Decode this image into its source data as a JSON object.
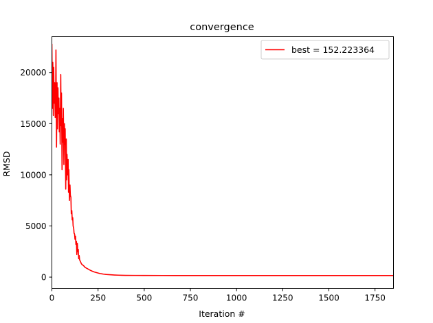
{
  "chart_data": {
    "type": "line",
    "title": "convergence",
    "xlabel": "Iteration #",
    "ylabel": "RMSD",
    "xlim": [
      0,
      1850
    ],
    "ylim": [
      -1100,
      23500
    ],
    "xticks": [
      0,
      250,
      500,
      750,
      1000,
      1250,
      1500,
      1750
    ],
    "yticks": [
      0,
      5000,
      10000,
      15000,
      20000
    ],
    "grid": false,
    "legend_position": "top-right",
    "series": [
      {
        "name": "best = 152.223364",
        "color": "#ff0000",
        "x": [
          0,
          3,
          5,
          8,
          10,
          12,
          15,
          18,
          20,
          22,
          25,
          28,
          30,
          33,
          35,
          38,
          40,
          42,
          45,
          48,
          50,
          52,
          55,
          58,
          60,
          62,
          65,
          68,
          70,
          72,
          75,
          78,
          80,
          82,
          85,
          88,
          90,
          92,
          95,
          98,
          100,
          103,
          105,
          108,
          110,
          113,
          115,
          118,
          120,
          123,
          125,
          128,
          130,
          133,
          135,
          138,
          140,
          143,
          145,
          148,
          150,
          155,
          160,
          165,
          170,
          175,
          180,
          190,
          200,
          210,
          220,
          230,
          240,
          250,
          260,
          270,
          280,
          290,
          300,
          320,
          340,
          360,
          380,
          400,
          450,
          500,
          600,
          700,
          800,
          1000,
          1200,
          1400,
          1600,
          1850
        ],
        "y": [
          22800,
          16500,
          21000,
          15800,
          20500,
          17000,
          19000,
          15600,
          16000,
          22200,
          12700,
          19000,
          14500,
          18500,
          16000,
          17500,
          14200,
          16500,
          13000,
          19800,
          14800,
          18000,
          10500,
          15500,
          13200,
          16500,
          11000,
          15000,
          13000,
          14500,
          8600,
          13500,
          9500,
          12000,
          10000,
          11500,
          8300,
          10500,
          7500,
          9000,
          8000,
          7800,
          6200,
          6500,
          5600,
          5800,
          5000,
          4800,
          4300,
          4200,
          3700,
          4000,
          3200,
          3500,
          2200,
          3300,
          2500,
          2700,
          1800,
          2100,
          1700,
          1500,
          1300,
          1200,
          1150,
          1050,
          950,
          850,
          750,
          650,
          570,
          500,
          450,
          400,
          350,
          320,
          290,
          270,
          250,
          225,
          205,
          190,
          180,
          172,
          165,
          160,
          157,
          155,
          154,
          153,
          152.8,
          152.5,
          152.3,
          152.223364
        ]
      }
    ]
  }
}
